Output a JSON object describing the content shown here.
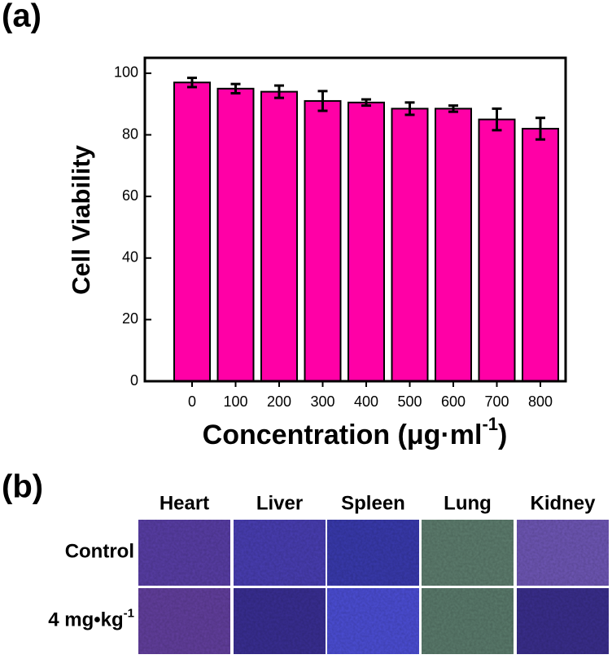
{
  "chart_data": {
    "type": "bar",
    "categories": [
      "0",
      "100",
      "200",
      "300",
      "400",
      "500",
      "600",
      "700",
      "800"
    ],
    "values": [
      97,
      95,
      94,
      91,
      90.5,
      88.5,
      88.5,
      85,
      82
    ],
    "errors": [
      1.5,
      1.5,
      2,
      3.2,
      1,
      2,
      1,
      3.5,
      3.5
    ],
    "color": "#ff00a6",
    "ylim": [
      0,
      105
    ],
    "yticks": [
      0,
      20,
      40,
      60,
      80,
      100
    ],
    "y_label": "Cell Viability",
    "x_label": "Concentration (μg·ml",
    "x_label_sup": "-1",
    "x_label_end": ")"
  },
  "panel_a_label": "(a)",
  "panel_b": {
    "label": "(b)",
    "columns": [
      "Heart",
      "Liver",
      "Spleen",
      "Lung",
      "Kidney"
    ],
    "rows": [
      {
        "text": "Control"
      },
      {
        "text": "4 mg•kg",
        "superscript": "-1"
      }
    ]
  }
}
